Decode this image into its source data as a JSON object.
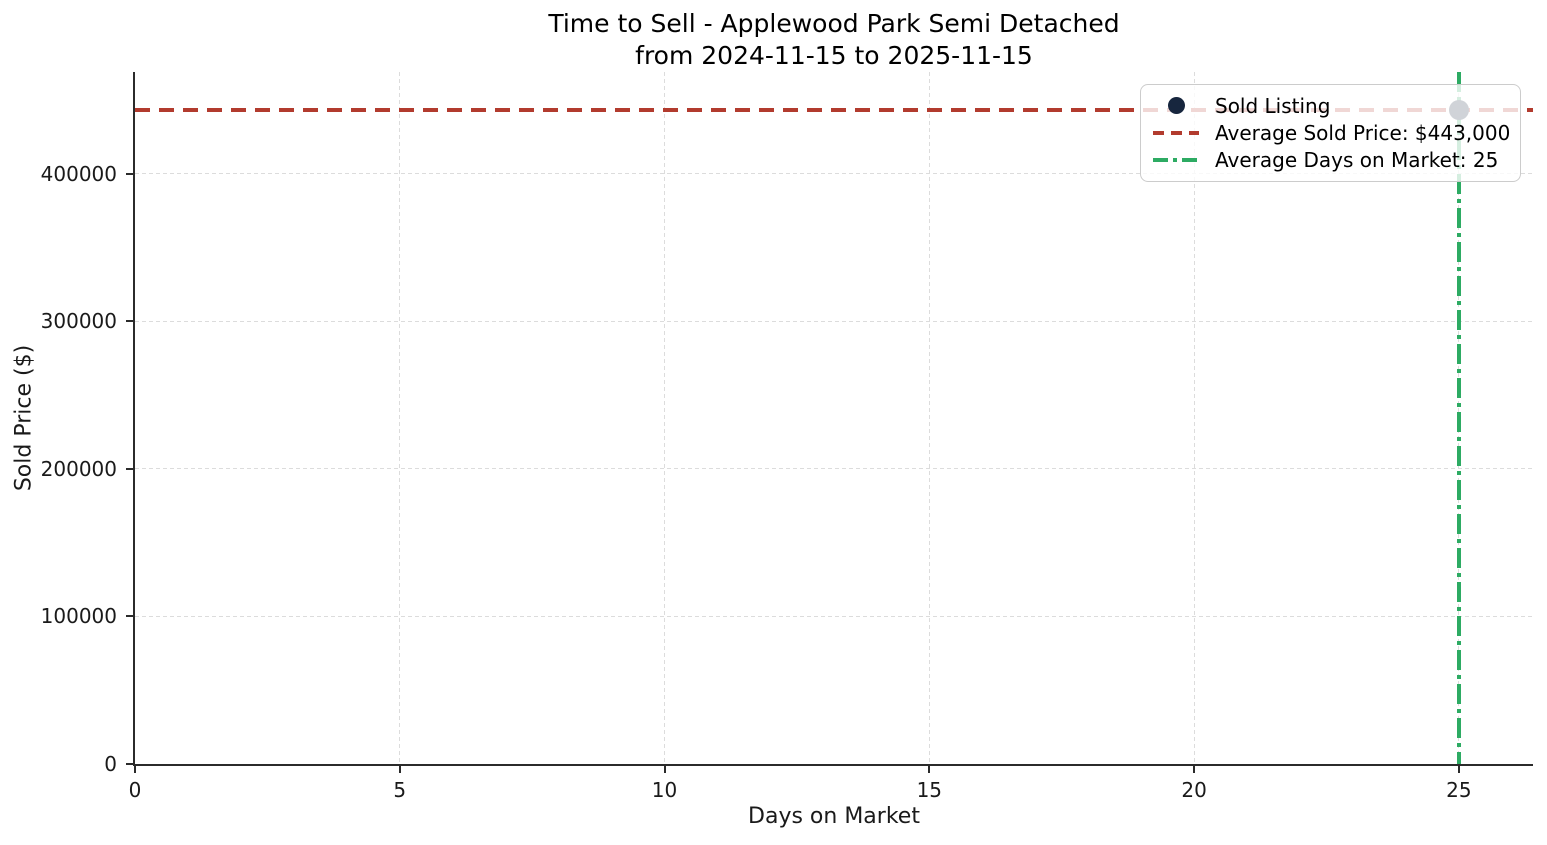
{
  "chart_data": {
    "type": "scatter",
    "title": "Time to Sell - Applewood Park Semi Detached",
    "subtitle": "from 2024-11-15 to 2025-11-15",
    "xlabel": "Days on Market",
    "ylabel": "Sold Price ($)",
    "points": [
      {
        "x": 25,
        "y": 443000,
        "series": "Sold Listing"
      }
    ],
    "avg_sold_price": 443000,
    "avg_days_on_market": 25,
    "x_ticks": [
      0,
      5,
      10,
      15,
      20,
      25
    ],
    "y_ticks": [
      0,
      100000,
      200000,
      300000,
      400000
    ],
    "xlim": [
      0,
      26.4
    ],
    "ylim": [
      0,
      469000
    ],
    "grid": "dashed",
    "legend_position": "upper right"
  },
  "legend": {
    "items": [
      {
        "label": "Sold Listing",
        "swatch": "marker",
        "color": "#17263e"
      },
      {
        "label": "Average Sold Price: $443,000",
        "swatch": "dashed",
        "color": "#b23b2e"
      },
      {
        "label": "Average Days on Market: 25",
        "swatch": "dashdot",
        "color": "#2dab63"
      }
    ]
  },
  "colors": {
    "point": "#17263e",
    "avg_price_line": "#b23b2e",
    "avg_dom_line": "#2dab63",
    "grid": "#dcdcdc",
    "spine": "#2b2b2b",
    "text": "#1a1a1a"
  }
}
